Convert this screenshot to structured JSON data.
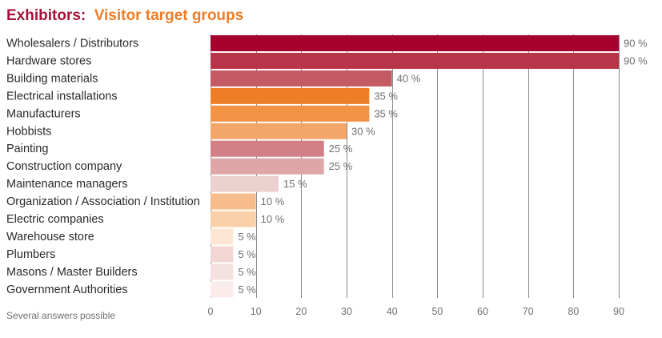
{
  "chart_data": {
    "type": "bar",
    "orientation": "horizontal",
    "title_prefix": "Exhibitors:",
    "title": "Visitor target groups",
    "note": "Several answers possible",
    "value_suffix": " %",
    "xlim": [
      0,
      90
    ],
    "xticks": [
      0,
      10,
      20,
      30,
      40,
      50,
      60,
      70,
      80,
      90
    ],
    "grid": true,
    "categories": [
      "Wholesalers / Distributors",
      "Hardware stores",
      "Building materials",
      "Electrical installations",
      "Manufacturers",
      "Hobbists",
      "Painting",
      "Construction company",
      "Maintenance managers",
      "Organization / Association / Institution",
      "Electric companies",
      "Warehouse store",
      "Plumbers",
      "Masons / Master Builders",
      "Government Authorities"
    ],
    "values": [
      90,
      90,
      40,
      35,
      35,
      30,
      25,
      25,
      15,
      10,
      10,
      5,
      5,
      5,
      5
    ],
    "colors": [
      "#a6002e",
      "#b83448",
      "#c45a62",
      "#ee7d27",
      "#f19245",
      "#f4a66a",
      "#d27f85",
      "#dfa5a7",
      "#ecd0cf",
      "#f7bc8c",
      "#fad0a9",
      "#fde6d4",
      "#f3d6d4",
      "#f5e1df",
      "#f9ecea"
    ]
  }
}
